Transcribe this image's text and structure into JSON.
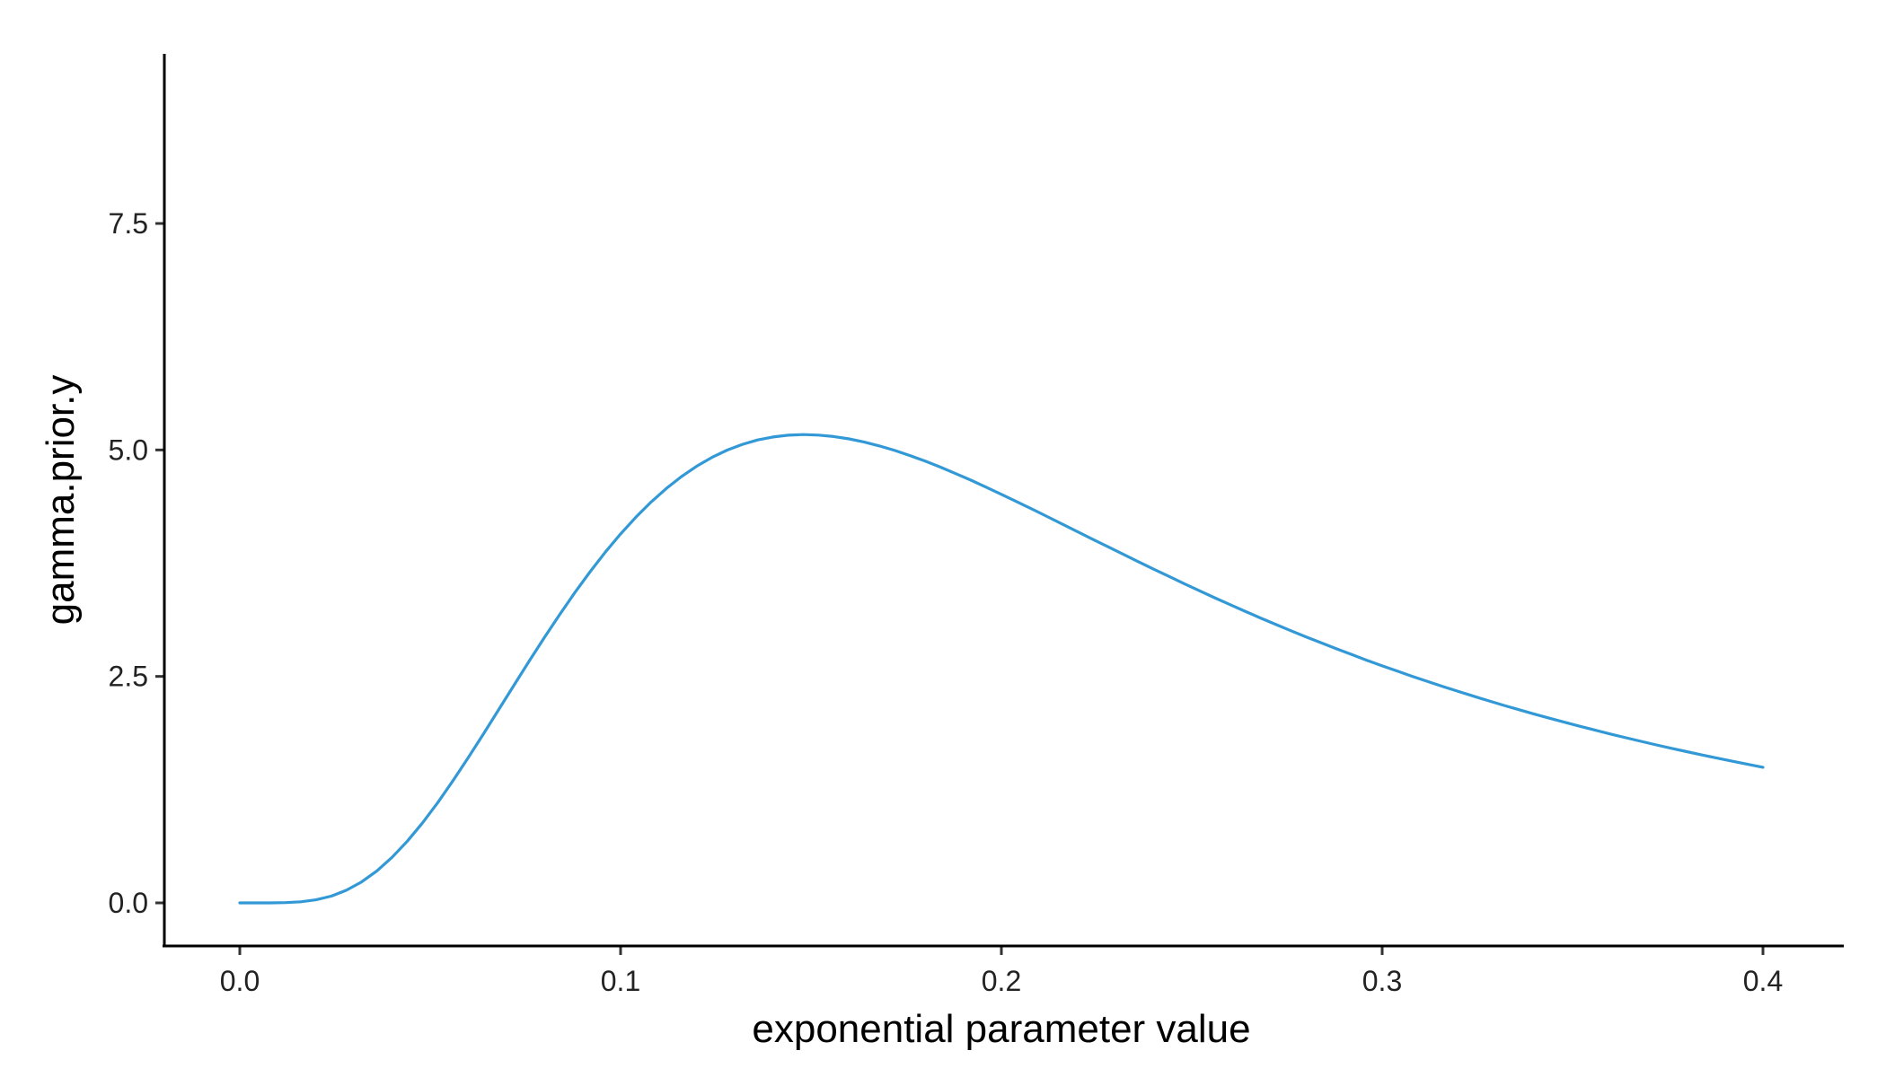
{
  "chart_data": {
    "type": "line",
    "title": "",
    "xlabel": "exponential parameter value",
    "ylabel": "gamma.prior.y",
    "xlim": [
      -0.02,
      0.42
    ],
    "ylim": [
      -0.45,
      9.5
    ],
    "x_ticks": [
      0.0,
      0.1,
      0.2,
      0.3,
      0.4
    ],
    "x_tick_labels": [
      "0.0",
      "0.1",
      "0.2",
      "0.3",
      "0.4"
    ],
    "y_ticks": [
      0.0,
      2.5,
      5.0,
      7.5
    ],
    "y_tick_labels": [
      "0.0",
      "2.5",
      "5.0",
      "7.5"
    ],
    "grid": false,
    "legend": "none",
    "colors": {
      "line": "#3399d6",
      "axis": "#000000"
    },
    "series": [
      {
        "values": [
          [
            0.0,
            0.0
          ],
          [
            0.004,
            0.0
          ],
          [
            0.008,
            0.0002
          ],
          [
            0.012,
            0.0027
          ],
          [
            0.016,
            0.0119
          ],
          [
            0.02,
            0.0338
          ],
          [
            0.024,
            0.0746
          ],
          [
            0.028,
            0.1394
          ],
          [
            0.032,
            0.2317
          ],
          [
            0.036,
            0.353
          ],
          [
            0.04,
            0.5034
          ],
          [
            0.044,
            0.6812
          ],
          [
            0.048,
            0.8839
          ],
          [
            0.052,
            1.108
          ],
          [
            0.056,
            1.349
          ],
          [
            0.06,
            1.604
          ],
          [
            0.064,
            1.867
          ],
          [
            0.068,
            2.134
          ],
          [
            0.072,
            2.403
          ],
          [
            0.076,
            2.669
          ],
          [
            0.08,
            2.93
          ],
          [
            0.084,
            3.183
          ],
          [
            0.088,
            3.426
          ],
          [
            0.092,
            3.656
          ],
          [
            0.096,
            3.872
          ],
          [
            0.1,
            4.073
          ],
          [
            0.104,
            4.257
          ],
          [
            0.108,
            4.425
          ],
          [
            0.112,
            4.574
          ],
          [
            0.116,
            4.706
          ],
          [
            0.12,
            4.821
          ],
          [
            0.124,
            4.918
          ],
          [
            0.128,
            4.998
          ],
          [
            0.132,
            5.062
          ],
          [
            0.136,
            5.11
          ],
          [
            0.14,
            5.143
          ],
          [
            0.144,
            5.163
          ],
          [
            0.148,
            5.17
          ],
          [
            0.152,
            5.164
          ],
          [
            0.156,
            5.148
          ],
          [
            0.16,
            5.122
          ],
          [
            0.164,
            5.087
          ],
          [
            0.168,
            5.044
          ],
          [
            0.172,
            4.994
          ],
          [
            0.176,
            4.938
          ],
          [
            0.18,
            4.876
          ],
          [
            0.184,
            4.81
          ],
          [
            0.188,
            4.739
          ],
          [
            0.192,
            4.666
          ],
          [
            0.196,
            4.589
          ],
          [
            0.2,
            4.51
          ],
          [
            0.204,
            4.43
          ],
          [
            0.208,
            4.348
          ],
          [
            0.212,
            4.265
          ],
          [
            0.216,
            4.182
          ],
          [
            0.22,
            4.098
          ],
          [
            0.224,
            4.014
          ],
          [
            0.228,
            3.931
          ],
          [
            0.232,
            3.848
          ],
          [
            0.236,
            3.766
          ],
          [
            0.24,
            3.684
          ],
          [
            0.244,
            3.604
          ],
          [
            0.248,
            3.524
          ],
          [
            0.252,
            3.446
          ],
          [
            0.256,
            3.369
          ],
          [
            0.26,
            3.293
          ],
          [
            0.264,
            3.219
          ],
          [
            0.268,
            3.146
          ],
          [
            0.272,
            3.075
          ],
          [
            0.276,
            3.005
          ],
          [
            0.28,
            2.937
          ],
          [
            0.284,
            2.87
          ],
          [
            0.288,
            2.805
          ],
          [
            0.292,
            2.741
          ],
          [
            0.296,
            2.678
          ],
          [
            0.3,
            2.617
          ],
          [
            0.304,
            2.558
          ],
          [
            0.308,
            2.5
          ],
          [
            0.312,
            2.443
          ],
          [
            0.316,
            2.388
          ],
          [
            0.32,
            2.334
          ],
          [
            0.324,
            2.282
          ],
          [
            0.328,
            2.23
          ],
          [
            0.332,
            2.18
          ],
          [
            0.336,
            2.132
          ],
          [
            0.34,
            2.084
          ],
          [
            0.344,
            2.038
          ],
          [
            0.348,
            1.993
          ],
          [
            0.352,
            1.949
          ],
          [
            0.356,
            1.906
          ],
          [
            0.36,
            1.864
          ],
          [
            0.364,
            1.823
          ],
          [
            0.368,
            1.783
          ],
          [
            0.372,
            1.744
          ],
          [
            0.376,
            1.706
          ],
          [
            0.38,
            1.669
          ],
          [
            0.384,
            1.633
          ],
          [
            0.388,
            1.598
          ],
          [
            0.392,
            1.563
          ],
          [
            0.396,
            1.53
          ],
          [
            0.4,
            1.497
          ]
        ]
      }
    ]
  }
}
